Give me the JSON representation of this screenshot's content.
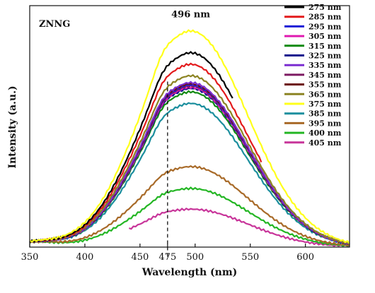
{
  "chart_data": {
    "type": "line",
    "title": "ZNNG",
    "xlabel": "Wavelength (nm)",
    "ylabel": "Intensity (a.u.)",
    "xlim": [
      350,
      640
    ],
    "ylim": [
      0,
      1.05
    ],
    "x_ticks": [
      350,
      400,
      450,
      475,
      500,
      550,
      600
    ],
    "y_ticks_shown": false,
    "grid": false,
    "legend_position": "top-right",
    "annotations": [
      {
        "text": "496 nm",
        "x": 496,
        "y": 1.0
      },
      {
        "text": "475",
        "type": "dashed-vline",
        "x": 475
      }
    ],
    "series": [
      {
        "name": "275 nm",
        "color": "#000000",
        "peak": 0.845,
        "x_range": [
          350,
          535
        ]
      },
      {
        "name": "285 nm",
        "color": "#e31a1c",
        "peak": 0.795,
        "x_range": [
          350,
          560
        ]
      },
      {
        "name": "295 nm",
        "color": "#1f1fd6",
        "peak": 0.705,
        "x_range": [
          350,
          640
        ]
      },
      {
        "name": "305 nm",
        "color": "#e01ab0",
        "peak": 0.695,
        "x_range": [
          350,
          640
        ]
      },
      {
        "name": "315 nm",
        "color": "#118a11",
        "peak": 0.675,
        "x_range": [
          350,
          640
        ]
      },
      {
        "name": "325 nm",
        "color": "#14148f",
        "peak": 0.69,
        "x_range": [
          350,
          640
        ]
      },
      {
        "name": "335 nm",
        "color": "#7b2ed1",
        "peak": 0.715,
        "x_range": [
          350,
          640
        ]
      },
      {
        "name": "345 nm",
        "color": "#7d1a62",
        "peak": 0.7,
        "x_range": [
          350,
          640
        ]
      },
      {
        "name": "355 nm",
        "color": "#6b1010",
        "peak": 0.71,
        "x_range": [
          350,
          640
        ]
      },
      {
        "name": "365 nm",
        "color": "#8c8423",
        "peak": 0.745,
        "x_range": [
          350,
          640
        ]
      },
      {
        "name": "375 nm",
        "color": "#ffff1a",
        "peak": 0.94,
        "x_range": [
          350,
          640
        ]
      },
      {
        "name": "385 nm",
        "color": "#1c8f9e",
        "peak": 0.625,
        "x_range": [
          350,
          640
        ]
      },
      {
        "name": "395 nm",
        "color": "#a86a28",
        "peak": 0.35,
        "x_range": [
          350,
          640
        ]
      },
      {
        "name": "400 nm",
        "color": "#24b624",
        "peak": 0.255,
        "x_range": [
          350,
          640
        ]
      },
      {
        "name": "405 nm",
        "color": "#c8359a",
        "peak": 0.165,
        "x_range": [
          440,
          640
        ]
      }
    ]
  }
}
